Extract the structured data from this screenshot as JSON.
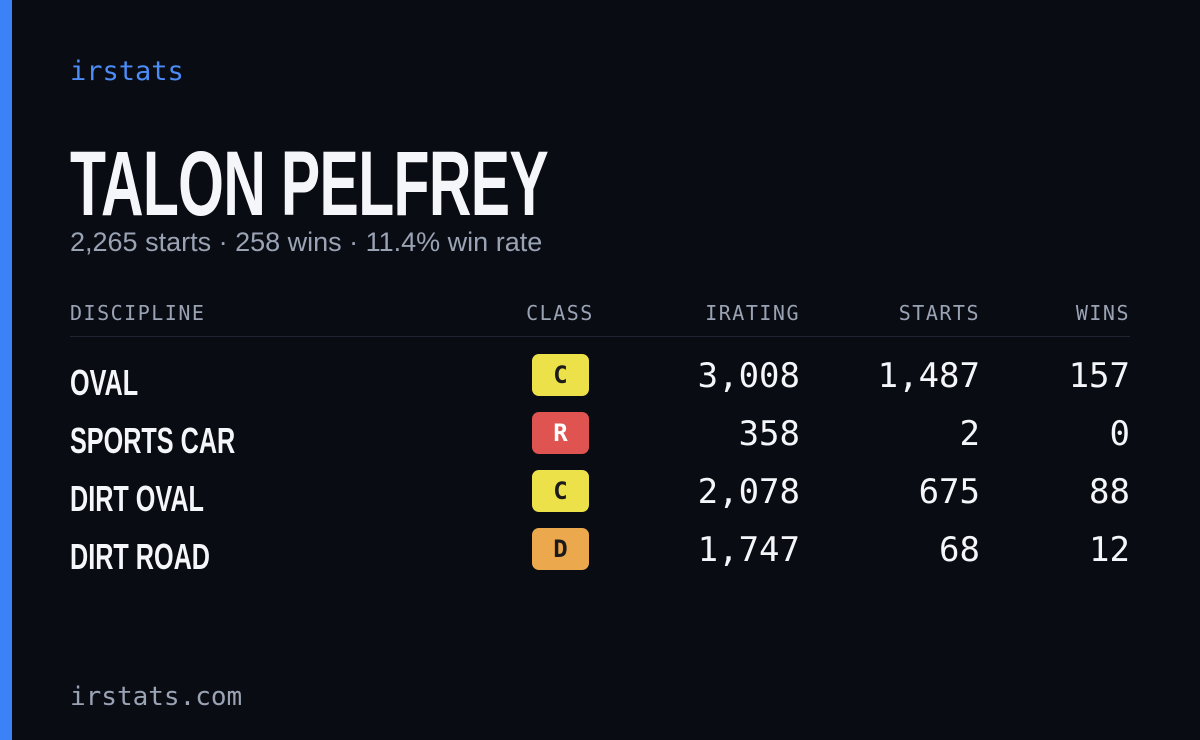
{
  "brand": "irstats",
  "driver": {
    "name": "TALON PELFREY",
    "summary": "2,265 starts · 258 wins · 11.4% win rate"
  },
  "table": {
    "headers": [
      "DISCIPLINE",
      "CLASS",
      "IRATING",
      "STARTS",
      "WINS"
    ],
    "rows": [
      [
        "OVAL",
        "C",
        "3,008",
        "1,487",
        "157"
      ],
      [
        "SPORTS CAR",
        "R",
        "358",
        "2",
        "0"
      ],
      [
        "DIRT OVAL",
        "C",
        "2,078",
        "675",
        "88"
      ],
      [
        "DIRT ROAD",
        "D",
        "1,747",
        "68",
        "12"
      ]
    ]
  },
  "footer": "irstats.com"
}
